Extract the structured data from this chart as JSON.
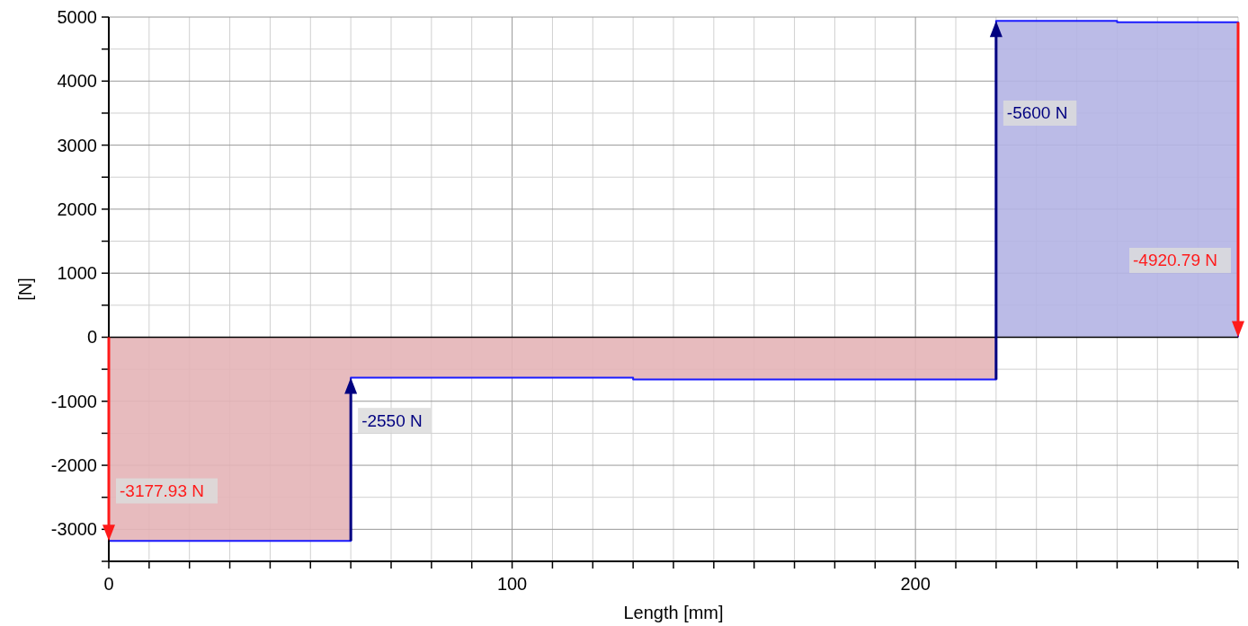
{
  "chart_data": {
    "type": "step",
    "xlabel": "Length [mm]",
    "ylabel": "[N]",
    "xlim": [
      0,
      280
    ],
    "ylim": [
      -3500,
      5000
    ],
    "xticks": [
      0,
      {
        "value": 10,
        "label": null
      },
      {
        "value": 20,
        "label": null
      },
      {
        "value": 30,
        "label": null
      },
      {
        "value": 40,
        "label": null
      },
      {
        "value": 50,
        "label": null
      },
      {
        "value": 60,
        "label": null
      },
      {
        "value": 70,
        "label": null
      },
      {
        "value": 80,
        "label": null
      },
      {
        "value": 90,
        "label": null
      },
      100,
      {
        "value": 110,
        "label": null
      },
      {
        "value": 120,
        "label": null
      },
      {
        "value": 130,
        "label": null
      },
      {
        "value": 140,
        "label": null
      },
      {
        "value": 150,
        "label": null
      },
      {
        "value": 160,
        "label": null
      },
      {
        "value": 170,
        "label": null
      },
      {
        "value": 180,
        "label": null
      },
      {
        "value": 190,
        "label": null
      },
      200,
      {
        "value": 210,
        "label": null
      },
      {
        "value": 220,
        "label": null
      },
      {
        "value": 230,
        "label": null
      },
      {
        "value": 240,
        "label": null
      },
      {
        "value": 250,
        "label": null
      },
      {
        "value": 260,
        "label": null
      },
      {
        "value": 270,
        "label": null
      },
      {
        "value": 280,
        "label": null
      }
    ],
    "yticks": [
      {
        "value": -3500,
        "label": null
      },
      -3000,
      {
        "value": -2500,
        "label": null
      },
      -2000,
      {
        "value": -1500,
        "label": null
      },
      -1000,
      {
        "value": -500,
        "label": null
      },
      0,
      {
        "value": 500,
        "label": null
      },
      1000,
      {
        "value": 1500,
        "label": null
      },
      2000,
      {
        "value": 2500,
        "label": null
      },
      3000,
      {
        "value": 3500,
        "label": null
      },
      4000,
      {
        "value": 4500,
        "label": null
      },
      5000
    ],
    "grid": true,
    "ref_lines": [
      {
        "axis": "y",
        "value": 0,
        "color": "#000000"
      }
    ],
    "series": [
      {
        "type": "area",
        "color": "#e4b4b7",
        "x": [
          0,
          60,
          130,
          220
        ],
        "values": [
          -3180,
          -630,
          -660,
          0
        ]
      },
      {
        "type": "area",
        "color": "#b4b4e4",
        "x": [
          220,
          250,
          280
        ],
        "values": [
          4940,
          4920,
          0
        ]
      },
      {
        "color": "#1a1aff",
        "x": [
          0,
          60,
          130,
          220,
          250,
          280
        ],
        "values": [
          -3180,
          -630,
          -660,
          4940,
          4920,
          0
        ]
      }
    ],
    "annotations": [
      {
        "text": "-3177.93 N",
        "x": 0,
        "y": -2400
      },
      {
        "text": "-2550 N",
        "x": 60,
        "y": -1300
      },
      {
        "text": "-5600 N",
        "x": 220,
        "y": 3500
      },
      {
        "text": "-4920.79 N",
        "x": 280,
        "y": 1200
      }
    ]
  }
}
